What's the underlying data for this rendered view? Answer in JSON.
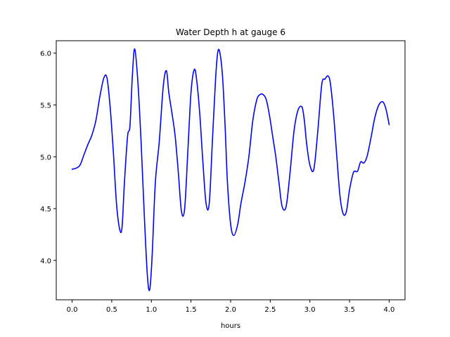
{
  "chart_data": {
    "type": "line",
    "title": "Water Depth h at gauge 6",
    "xlabel": "hours",
    "ylabel": "",
    "xlim": [
      -0.2,
      4.2
    ],
    "ylim": [
      3.62,
      6.12
    ],
    "xticks": [
      0.0,
      0.5,
      1.0,
      1.5,
      2.0,
      2.5,
      3.0,
      3.5,
      4.0
    ],
    "xtick_labels": [
      "0.0",
      "0.5",
      "1.0",
      "1.5",
      "2.0",
      "2.5",
      "3.0",
      "3.5",
      "4.0"
    ],
    "yticks": [
      4.0,
      4.5,
      5.0,
      5.5,
      6.0
    ],
    "ytick_labels": [
      "4.0",
      "4.5",
      "5.0",
      "5.5",
      "6.0"
    ],
    "grid": false,
    "legend": "none",
    "series": [
      {
        "color": "#0000ff",
        "x": [
          0.0,
          0.05,
          0.1,
          0.15,
          0.2,
          0.25,
          0.3,
          0.35,
          0.4,
          0.44,
          0.48,
          0.52,
          0.56,
          0.6,
          0.63,
          0.66,
          0.7,
          0.73,
          0.76,
          0.79,
          0.83,
          0.87,
          0.91,
          0.95,
          0.98,
          1.01,
          1.05,
          1.1,
          1.15,
          1.19,
          1.22,
          1.26,
          1.3,
          1.34,
          1.38,
          1.42,
          1.46,
          1.5,
          1.54,
          1.57,
          1.61,
          1.65,
          1.69,
          1.73,
          1.77,
          1.81,
          1.84,
          1.87,
          1.9,
          1.93,
          1.96,
          2.0,
          2.04,
          2.09,
          2.13,
          2.18,
          2.23,
          2.28,
          2.33,
          2.37,
          2.41,
          2.45,
          2.49,
          2.53,
          2.57,
          2.61,
          2.65,
          2.7,
          2.75,
          2.8,
          2.85,
          2.9,
          2.93,
          2.96,
          3.0,
          3.05,
          3.1,
          3.15,
          3.19,
          3.23,
          3.26,
          3.3,
          3.34,
          3.38,
          3.42,
          3.46,
          3.5,
          3.55,
          3.6,
          3.64,
          3.68,
          3.72,
          3.77,
          3.82,
          3.87,
          3.92,
          3.96,
          4.0
        ],
        "y": [
          4.88,
          4.89,
          4.92,
          5.02,
          5.12,
          5.21,
          5.35,
          5.58,
          5.76,
          5.76,
          5.48,
          5.05,
          4.55,
          4.3,
          4.32,
          4.75,
          5.2,
          5.3,
          5.78,
          6.04,
          5.72,
          5.15,
          4.45,
          3.85,
          3.72,
          4.05,
          4.75,
          5.15,
          5.68,
          5.83,
          5.62,
          5.42,
          5.2,
          4.85,
          4.47,
          4.5,
          5.05,
          5.62,
          5.84,
          5.75,
          5.42,
          4.95,
          4.55,
          4.55,
          5.15,
          5.75,
          6.02,
          5.98,
          5.75,
          5.3,
          4.75,
          4.35,
          4.24,
          4.35,
          4.55,
          4.75,
          5.0,
          5.35,
          5.55,
          5.6,
          5.6,
          5.55,
          5.4,
          5.2,
          5.0,
          4.75,
          4.52,
          4.52,
          4.85,
          5.25,
          5.45,
          5.48,
          5.35,
          5.12,
          4.92,
          4.88,
          5.25,
          5.7,
          5.75,
          5.78,
          5.7,
          5.4,
          5.0,
          4.62,
          4.45,
          4.47,
          4.68,
          4.85,
          4.86,
          4.95,
          4.94,
          5.0,
          5.18,
          5.38,
          5.5,
          5.53,
          5.46,
          5.31
        ]
      }
    ]
  }
}
